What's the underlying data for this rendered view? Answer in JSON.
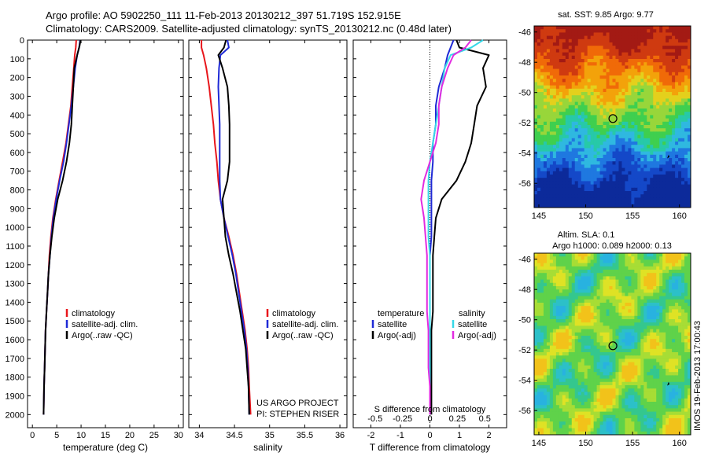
{
  "title_line1": "Argo profile: AO 5902250_111 11-Feb-2013 20130212_397 51.719S 152.915E",
  "title_line2": "Climatology: CARS2009. Satellite-adjusted climatology: synTS_20130212.nc (0.48d later)",
  "colors": {
    "climatology": "#e8161b",
    "satellite": "#1f2ad6",
    "argo": "#000000",
    "sat_salinity": "#36d8e8",
    "argo_salinity": "#e22be0"
  },
  "chart_data": [
    {
      "type": "line",
      "name": "temperature-panel",
      "xlabel": "temperature (deg C)",
      "ylabel": "",
      "xlim": [
        -1,
        31
      ],
      "ylim": [
        2070,
        0
      ],
      "xticks": [
        0,
        5,
        10,
        15,
        20,
        25,
        30
      ],
      "yticks": [
        0,
        100,
        200,
        300,
        400,
        500,
        600,
        700,
        800,
        900,
        1000,
        1100,
        1200,
        1300,
        1400,
        1500,
        1600,
        1700,
        1800,
        1900,
        2000
      ],
      "legend": [
        "climatology",
        "satellite-adj. clim.",
        "Argo(..raw -QC)"
      ],
      "series": [
        {
          "name": "climatology",
          "x": [
            9.0,
            8.9,
            8.7,
            8.5,
            8.2,
            7.9,
            7.4,
            6.9,
            6.2,
            5.5,
            4.8,
            4.2,
            3.8,
            3.5,
            3.3,
            3.1,
            2.9,
            2.7,
            2.6,
            2.5,
            2.4,
            2.3
          ],
          "y": [
            0,
            40,
            80,
            150,
            250,
            350,
            450,
            550,
            650,
            750,
            850,
            950,
            1050,
            1150,
            1250,
            1350,
            1450,
            1550,
            1650,
            1750,
            1850,
            2000
          ]
        },
        {
          "name": "satellite-adj. clim.",
          "x": [
            9.8,
            9.6,
            9.2,
            8.8,
            8.4,
            8.0,
            7.5,
            7.0,
            6.4,
            5.6,
            4.9,
            4.3,
            3.9,
            3.6,
            3.3,
            3.1,
            2.9,
            2.7,
            2.6,
            2.5,
            2.4,
            2.3
          ],
          "y": [
            0,
            40,
            80,
            150,
            250,
            350,
            450,
            550,
            650,
            750,
            850,
            950,
            1050,
            1150,
            1250,
            1350,
            1450,
            1550,
            1650,
            1750,
            1850,
            2000
          ]
        },
        {
          "name": "Argo(..raw -QC)",
          "x": [
            9.9,
            9.7,
            9.3,
            8.6,
            8.4,
            8.2,
            8.0,
            7.6,
            7.0,
            6.2,
            5.2,
            4.5,
            4.0,
            3.6,
            3.3,
            3.1,
            2.9,
            2.7,
            2.6,
            2.5,
            2.4,
            2.3
          ],
          "y": [
            0,
            30,
            70,
            150,
            250,
            350,
            450,
            550,
            650,
            750,
            850,
            950,
            1050,
            1150,
            1250,
            1350,
            1450,
            1550,
            1650,
            1750,
            1850,
            2000
          ]
        }
      ]
    },
    {
      "type": "line",
      "name": "salinity-panel",
      "xlabel": "salinity",
      "ylabel": "",
      "xlim": [
        33.85,
        36.1
      ],
      "ylim": [
        2070,
        0
      ],
      "xticks": [
        34,
        34.5,
        35,
        35.5,
        36
      ],
      "legend": [
        "climatology",
        "satellite-adj. clim.",
        "Argo(..raw -QC)"
      ],
      "annotations": [
        "US ARGO PROJECT",
        "PI: STEPHEN RISER"
      ],
      "series": [
        {
          "name": "climatology",
          "x": [
            34.03,
            34.03,
            34.06,
            34.1,
            34.14,
            34.17,
            34.2,
            34.22,
            34.25,
            34.27,
            34.3,
            34.35,
            34.42,
            34.48,
            34.53,
            34.57,
            34.61,
            34.65,
            34.68,
            34.7,
            34.71,
            34.73
          ],
          "y": [
            0,
            40,
            80,
            150,
            250,
            350,
            450,
            550,
            650,
            750,
            850,
            950,
            1050,
            1150,
            1250,
            1350,
            1450,
            1550,
            1650,
            1750,
            1850,
            2000
          ]
        },
        {
          "name": "satellite-adj. clim.",
          "x": [
            34.4,
            34.42,
            34.3,
            34.28,
            34.27,
            34.28,
            34.29,
            34.29,
            34.29,
            34.29,
            34.3,
            34.35,
            34.41,
            34.47,
            34.52,
            34.56,
            34.6,
            34.64,
            34.67,
            34.69,
            34.7,
            34.71
          ],
          "y": [
            0,
            40,
            80,
            150,
            250,
            350,
            450,
            550,
            650,
            750,
            850,
            950,
            1050,
            1150,
            1250,
            1350,
            1450,
            1550,
            1650,
            1750,
            1850,
            2000
          ]
        },
        {
          "name": "Argo(..raw -QC)",
          "x": [
            34.38,
            34.35,
            34.27,
            34.33,
            34.4,
            34.42,
            34.43,
            34.43,
            34.43,
            34.4,
            34.33,
            34.35,
            34.37,
            34.42,
            34.48,
            34.53,
            34.58,
            34.62,
            34.66,
            34.68,
            34.7,
            34.71
          ],
          "y": [
            0,
            40,
            80,
            150,
            250,
            350,
            450,
            550,
            650,
            750,
            850,
            950,
            1050,
            1150,
            1250,
            1350,
            1450,
            1550,
            1650,
            1750,
            1850,
            2000
          ]
        }
      ]
    },
    {
      "type": "line",
      "name": "difference-panel",
      "xlabel": "T difference from climatology",
      "xlabel_top": "S difference from climatology",
      "xlim": [
        -2.6,
        2.6
      ],
      "ylim": [
        2070,
        0
      ],
      "xticks": [
        -2,
        -1,
        0,
        1,
        2
      ],
      "xticks_s": [
        -0.5,
        -0.25,
        0,
        0.25,
        0.5
      ],
      "legend_temperature_header": "temperature",
      "legend_salinity_header": "salinity",
      "legend_temperature": [
        "satellite",
        "Argo(-adj)"
      ],
      "legend_salinity": [
        "satellite",
        "Argo(-adj)"
      ],
      "series": [
        {
          "name": "T satellite",
          "x": [
            0.8,
            0.7,
            0.6,
            0.5,
            0.3,
            0.2,
            0.2,
            0.1,
            0.1,
            0.05,
            0.05,
            0.05,
            0.05,
            0.0,
            0.0,
            0.0,
            0.0,
            0.0,
            0.0,
            0.0,
            0.0,
            0.0
          ],
          "y": [
            0,
            40,
            80,
            150,
            250,
            350,
            450,
            550,
            650,
            750,
            850,
            950,
            1050,
            1150,
            1250,
            1350,
            1450,
            1550,
            1650,
            1750,
            1850,
            2000
          ]
        },
        {
          "name": "T Argo(-adj)",
          "x": [
            0.9,
            1.0,
            2.0,
            1.8,
            1.9,
            1.6,
            1.5,
            1.4,
            1.2,
            0.9,
            0.4,
            0.2,
            0.15,
            0.1,
            0.1,
            0.1,
            0.1,
            0.05,
            0.05,
            0.05,
            0.05,
            0.05
          ],
          "y": [
            0,
            40,
            80,
            150,
            250,
            350,
            450,
            550,
            650,
            750,
            850,
            950,
            1050,
            1150,
            1250,
            1350,
            1450,
            1550,
            1650,
            1750,
            1850,
            2000
          ]
        },
        {
          "name": "S satellite",
          "x": [
            1.8,
            1.4,
            0.7,
            0.5,
            0.4,
            0.3,
            0.2,
            0.1,
            0.0,
            -0.05,
            -0.05,
            -0.05,
            -0.05,
            0.0,
            0.0,
            0.0,
            0.0,
            0.0,
            0.0,
            0.0,
            0.0,
            0.0
          ],
          "y": [
            0,
            40,
            80,
            150,
            250,
            350,
            450,
            550,
            650,
            750,
            850,
            950,
            1050,
            1150,
            1250,
            1350,
            1450,
            1550,
            1650,
            1750,
            1850,
            2000
          ]
        },
        {
          "name": "S Argo(-adj)",
          "x": [
            1.4,
            1.2,
            0.8,
            0.6,
            0.4,
            0.3,
            0.3,
            0.2,
            0.0,
            -0.2,
            -0.3,
            -0.2,
            -0.15,
            -0.1,
            -0.1,
            -0.1,
            -0.1,
            -0.05,
            -0.05,
            -0.05,
            0.0,
            0.0
          ],
          "y": [
            0,
            40,
            80,
            150,
            250,
            350,
            450,
            550,
            650,
            750,
            850,
            950,
            1050,
            1150,
            1250,
            1350,
            1450,
            1550,
            1650,
            1750,
            1850,
            2000
          ]
        }
      ]
    },
    {
      "type": "heatmap",
      "name": "sst-map",
      "title": "sat. SST: 9.85 Argo: 9.77",
      "xlim": [
        144.5,
        161.2
      ],
      "ylim": [
        -57.6,
        -45.6
      ],
      "xticks": [
        145,
        150,
        155,
        160
      ],
      "yticks": [
        -46,
        -48,
        -50,
        -52,
        -54,
        -56
      ],
      "marker": {
        "lon": 152.9,
        "lat": -51.72
      }
    },
    {
      "type": "heatmap",
      "name": "sla-map",
      "title": "Altim. SLA: 0.1",
      "subtitle": "Argo h1000: 0.089 h2000: 0.13",
      "xlim": [
        144.5,
        161.2
      ],
      "ylim": [
        -57.6,
        -45.6
      ],
      "xticks": [
        145,
        150,
        155,
        160
      ],
      "yticks": [
        -46,
        -48,
        -50,
        -52,
        -54,
        -56
      ],
      "marker": {
        "lon": 152.9,
        "lat": -51.72
      }
    }
  ],
  "footer_stamp": "IMOS 19-Feb-2013 17:00:43"
}
